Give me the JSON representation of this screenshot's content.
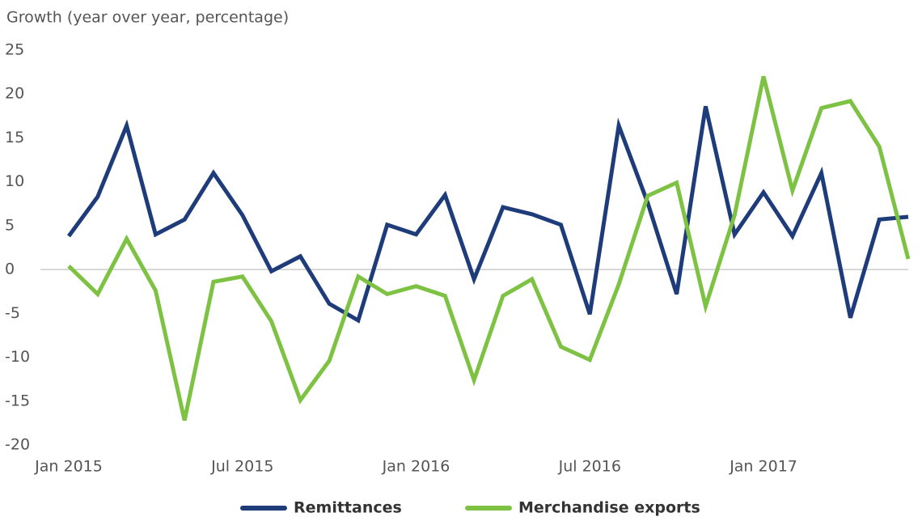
{
  "chart_data": {
    "type": "line",
    "y_axis_label": "Growth (year over year, percentage)",
    "categories": [
      "Jan 2015",
      null,
      null,
      null,
      null,
      null,
      "Jul 2015",
      null,
      null,
      null,
      null,
      null,
      "Jan 2016",
      null,
      null,
      null,
      null,
      null,
      "Jul 2016",
      null,
      null,
      null,
      null,
      null,
      "Jan 2017",
      null,
      null,
      null,
      null,
      null
    ],
    "series": [
      {
        "name": "Remittances",
        "color": "#1f3c7a",
        "values": [
          3.8,
          8.3,
          16.4,
          4,
          5.7,
          11,
          6.2,
          -0.2,
          1.5,
          -3.9,
          -5.8,
          5.1,
          4,
          8.5,
          -1.1,
          7.1,
          6.3,
          5.1,
          -5.1,
          16.4,
          7.6,
          -2.8,
          18.6,
          4,
          8.8,
          3.8,
          11,
          -5.5,
          5.7,
          6
        ]
      },
      {
        "name": "Merchandise exports",
        "color": "#7dc242",
        "values": [
          0.4,
          -2.8,
          3.5,
          -2.4,
          -17.2,
          -1.4,
          -0.8,
          -5.9,
          -14.9,
          -10.4,
          -0.8,
          -2.8,
          -1.9,
          -3,
          -12.6,
          -3,
          -1.1,
          -8.8,
          -10.3,
          -1.7,
          8.4,
          9.9,
          -4.2,
          6.2,
          22,
          9,
          18.4,
          19.2,
          14,
          1.2
        ]
      }
    ],
    "ylim": [
      -20,
      25
    ],
    "yticks": [
      -20,
      -15,
      -10,
      -5,
      0,
      5,
      10,
      15,
      20,
      25
    ],
    "legend": "bottom"
  }
}
